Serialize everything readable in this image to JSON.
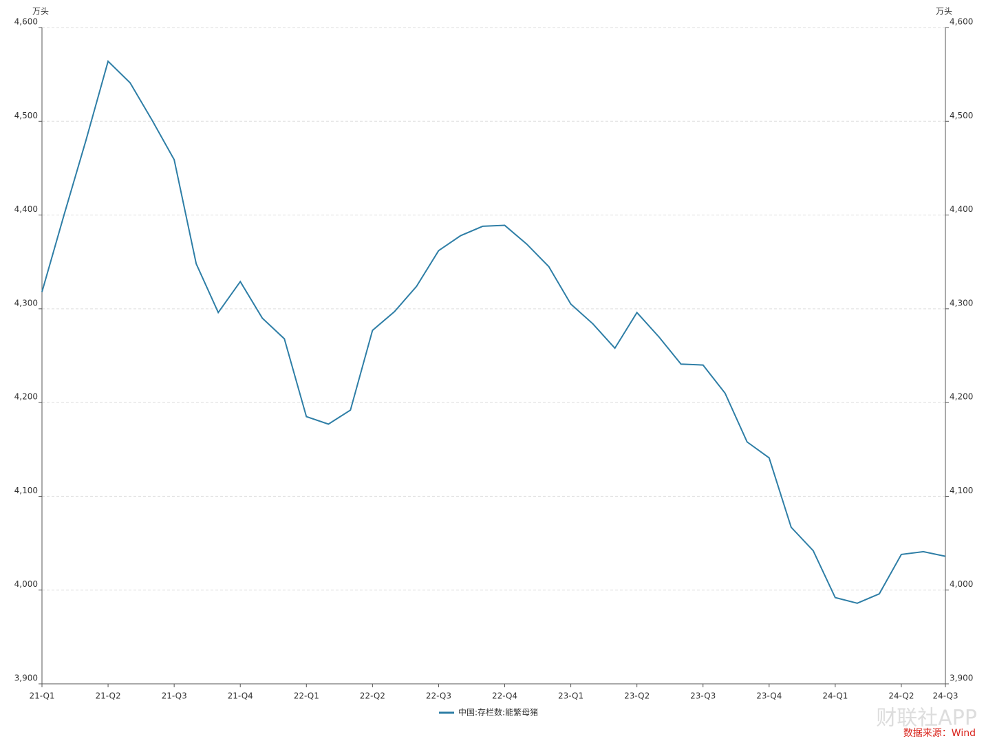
{
  "chart_data": {
    "type": "line",
    "y_unit": "万头",
    "y2_unit": "万头",
    "source": "数据来源：Wind",
    "watermark": "财联社APP",
    "categories": [
      "21-Q1",
      null,
      null,
      "21-Q2",
      null,
      null,
      "21-Q3",
      null,
      null,
      "21-Q4",
      null,
      null,
      "22-Q1",
      null,
      null,
      "22-Q2",
      null,
      null,
      "22-Q3",
      null,
      null,
      "22-Q4",
      null,
      null,
      "23-Q1",
      null,
      null,
      "23-Q2",
      null,
      null,
      "23-Q3",
      null,
      null,
      "23-Q4",
      null,
      null,
      "24-Q1",
      null,
      null,
      "24-Q2",
      null,
      "24-Q3"
    ],
    "series": [
      {
        "name": "中国:存栏数:能繁母猪",
        "color": "#2e7ea6",
        "values": [
          4318,
          4400,
          4480,
          4564,
          4541,
          4501,
          4459,
          4348,
          4296,
          4329,
          4290,
          4268,
          4185,
          4177,
          4192,
          4277,
          4297,
          4324,
          4362,
          4378,
          4388,
          4389,
          4369,
          4345,
          4305,
          4284,
          4258,
          4296,
          4270,
          4241,
          4240,
          4210,
          4158,
          4141,
          4067,
          4042,
          3992,
          3986,
          3996,
          4038,
          4041,
          4036
        ]
      }
    ],
    "ylim": [
      3900,
      4600
    ],
    "yticks": [
      {
        "value": 3900,
        "label": "3,900"
      },
      {
        "value": 4000,
        "label": "4,000"
      },
      {
        "value": 4100,
        "label": "4,100"
      },
      {
        "value": 4200,
        "label": "4,200"
      },
      {
        "value": 4300,
        "label": "4,300"
      },
      {
        "value": 4400,
        "label": "4,400"
      },
      {
        "value": 4500,
        "label": "4,500"
      },
      {
        "value": 4600,
        "label": "4,600"
      }
    ],
    "y2lim": [
      3900,
      4600
    ],
    "y2ticks": [
      {
        "value": 3900,
        "label": "3,900"
      },
      {
        "value": 4000,
        "label": "4,000"
      },
      {
        "value": 4100,
        "label": "4,100"
      },
      {
        "value": 4200,
        "label": "4,200"
      },
      {
        "value": 4300,
        "label": "4,300"
      },
      {
        "value": 4400,
        "label": "4,400"
      },
      {
        "value": 4500,
        "label": "4,500"
      },
      {
        "value": 4600,
        "label": "4,600"
      }
    ],
    "grid": true
  }
}
